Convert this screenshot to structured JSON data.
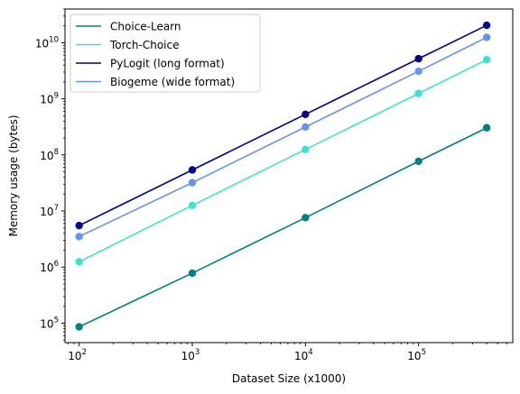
{
  "chart_data": {
    "type": "line",
    "xscale": "log",
    "yscale": "log",
    "x": [
      100,
      1000,
      10000,
      100000,
      400000
    ],
    "xlim": [
      75,
      680000
    ],
    "ylim": [
      45000,
      40000000000
    ],
    "xlabel": "Dataset Size (x1000)",
    "ylabel": "Memory usage (bytes)",
    "xticks": [
      {
        "value": 100,
        "base": "10",
        "exp": "2"
      },
      {
        "value": 1000,
        "base": "10",
        "exp": "3"
      },
      {
        "value": 10000,
        "base": "10",
        "exp": "4"
      },
      {
        "value": 100000,
        "base": "10",
        "exp": "5"
      }
    ],
    "yticks": [
      {
        "value": 100000,
        "base": "10",
        "exp": "5"
      },
      {
        "value": 1000000,
        "base": "10",
        "exp": "6"
      },
      {
        "value": 10000000,
        "base": "10",
        "exp": "7"
      },
      {
        "value": 100000000,
        "base": "10",
        "exp": "8"
      },
      {
        "value": 1000000000,
        "base": "10",
        "exp": "9"
      },
      {
        "value": 10000000000,
        "base": "10",
        "exp": "10"
      }
    ],
    "grid": false,
    "legend_position": "top-left",
    "series": [
      {
        "name": "Choice-Learn",
        "color": "#008080",
        "values": [
          86000,
          780000,
          7600000,
          77000000,
          305000000
        ]
      },
      {
        "name": "Torch-Choice",
        "color": "#40E0D0",
        "values": [
          1240000,
          12600000,
          125000000,
          1250000000,
          5000000000
        ]
      },
      {
        "name": "PyLogit (long format)",
        "color": "#00008B",
        "values": [
          5500000,
          54000000,
          530000000,
          5200000000,
          20500000000
        ]
      },
      {
        "name": "Biogeme (wide format)",
        "color": "#6495ED",
        "values": [
          3500000,
          32000000,
          315000000,
          3100000000,
          12500000000
        ]
      }
    ]
  }
}
